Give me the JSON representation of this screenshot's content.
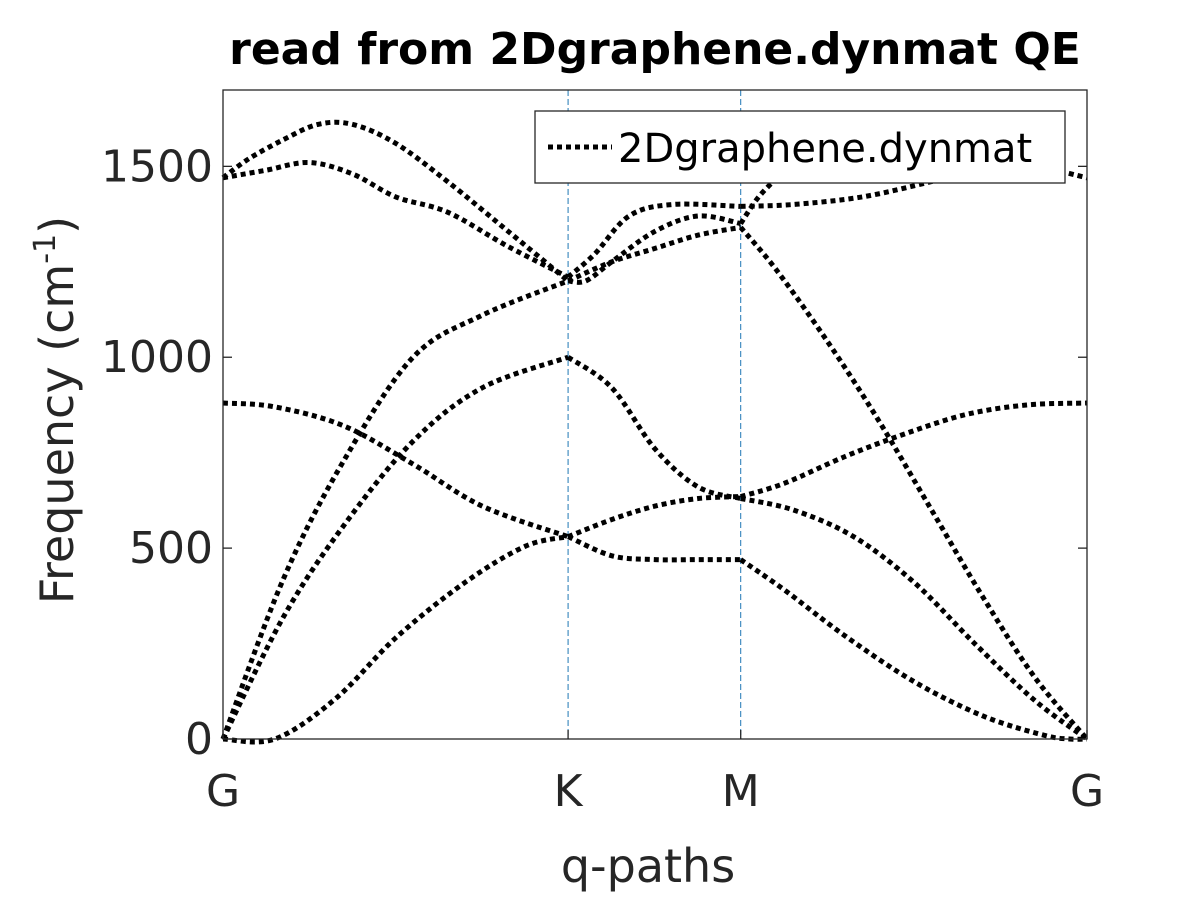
{
  "chart_data": {
    "type": "line",
    "title": "read from 2Dgraphene.dynmat QE",
    "xlabel": "q-paths",
    "ylabel": "Frequency (cm",
    "ylabel_sup": "-1",
    "ylabel_close": ")",
    "xlim": [
      0,
      1
    ],
    "ylim": [
      0,
      1700
    ],
    "yticks": [
      0,
      500,
      1000,
      1500
    ],
    "ytick_labels": [
      "0",
      "500",
      "1000",
      "1500"
    ],
    "x_ticks": [
      {
        "label": "G",
        "pos": 0
      },
      {
        "label": "K",
        "pos": 0.3994
      },
      {
        "label": "M",
        "pos": 0.5992
      },
      {
        "label": "G",
        "pos": 1
      }
    ],
    "legend": {
      "label": "2Dgraphene.dynmat",
      "location": "top-right"
    },
    "grid": false,
    "line_style": "dotted",
    "line_color": "#000000",
    "divider_color": "#1f77b4",
    "series": [
      {
        "x": [
          0,
          0.06,
          0.13,
          0.2,
          0.28,
          0.35,
          0.3994
        ],
        "y": [
          0,
          0,
          105,
          265,
          410,
          505,
          530
        ]
      },
      {
        "x": [
          0.3994,
          0.45,
          0.5,
          0.55,
          0.5992
        ],
        "y": [
          530,
          480,
          470,
          470,
          470
        ]
      },
      {
        "x": [
          0.5992,
          0.65,
          0.72,
          0.8,
          0.88,
          0.95,
          0.98,
          1
        ],
        "y": [
          470,
          390,
          270,
          150,
          60,
          10,
          0,
          0
        ]
      },
      {
        "x": [
          0,
          0.07,
          0.14,
          0.22,
          0.3,
          0.3994
        ],
        "y": [
          0,
          320,
          560,
          780,
          920,
          1000
        ]
      },
      {
        "x": [
          0.3994,
          0.45,
          0.5,
          0.55,
          0.5992
        ],
        "y": [
          1000,
          920,
          760,
          660,
          630
        ]
      },
      {
        "x": [
          0.5992,
          0.66,
          0.73,
          0.8,
          0.87,
          0.94,
          1
        ],
        "y": [
          630,
          600,
          530,
          410,
          250,
          100,
          0
        ]
      },
      {
        "x": [
          0,
          0.07,
          0.14,
          0.22,
          0.3,
          0.3994
        ],
        "y": [
          0,
          420,
          730,
          1000,
          1110,
          1200
        ]
      },
      {
        "x": [
          0.3994,
          0.45,
          0.5,
          0.55,
          0.5992
        ],
        "y": [
          1200,
          1250,
          1285,
          1320,
          1340
        ]
      },
      {
        "x": [
          0.5992,
          0.64,
          0.7,
          0.76,
          0.82,
          0.88,
          0.94,
          1
        ],
        "y": [
          1340,
          1230,
          1040,
          830,
          600,
          370,
          160,
          0
        ]
      },
      {
        "x": [
          0,
          0.06,
          0.14,
          0.22,
          0.3,
          0.3994
        ],
        "y": [
          880,
          870,
          820,
          720,
          610,
          530
        ]
      },
      {
        "x": [
          0.3994,
          0.45,
          0.5,
          0.55,
          0.5992
        ],
        "y": [
          530,
          575,
          610,
          630,
          635
        ]
      },
      {
        "x": [
          0.5992,
          0.65,
          0.72,
          0.79,
          0.86,
          0.93,
          1
        ],
        "y": [
          635,
          670,
          740,
          800,
          850,
          875,
          880
        ]
      },
      {
        "x": [
          0,
          0.03,
          0.07,
          0.11,
          0.15,
          0.2,
          0.26,
          0.33,
          0.3994
        ],
        "y": [
          1470,
          1520,
          1570,
          1610,
          1610,
          1560,
          1460,
          1330,
          1200
        ]
      },
      {
        "x": [
          0.3994,
          0.42,
          0.45,
          0.5,
          0.55,
          0.5992
        ],
        "y": [
          1200,
          1200,
          1250,
          1330,
          1370,
          1350
        ]
      },
      {
        "x": [
          0.5992,
          0.62,
          0.65,
          0.68,
          0.7
        ],
        "y": [
          1350,
          1420,
          1490,
          1560,
          1610
        ]
      },
      {
        "x": [
          0,
          0.05,
          0.1,
          0.15,
          0.2,
          0.26,
          0.33,
          0.3994
        ],
        "y": [
          1470,
          1490,
          1510,
          1480,
          1420,
          1380,
          1290,
          1210
        ]
      },
      {
        "x": [
          0.3994,
          0.43,
          0.47,
          0.52,
          0.5992
        ],
        "y": [
          1210,
          1270,
          1370,
          1400,
          1395
        ]
      },
      {
        "x": [
          0.5992,
          0.66,
          0.74,
          0.82,
          0.89,
          0.94,
          1
        ],
        "y": [
          1395,
          1400,
          1420,
          1460,
          1500,
          1500,
          1470
        ]
      }
    ]
  }
}
